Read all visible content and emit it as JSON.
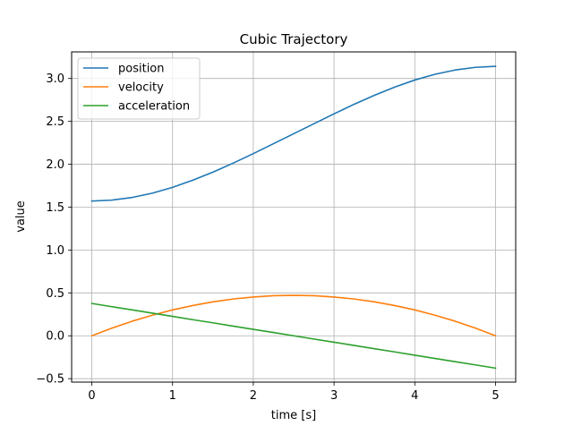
{
  "chart_data": {
    "type": "line",
    "title": "Cubic Trajectory",
    "xlabel": "time [s]",
    "ylabel": "value",
    "xlim": [
      -0.25,
      5.25
    ],
    "ylim": [
      -0.54,
      3.31
    ],
    "xticks": [
      0,
      1,
      2,
      3,
      4,
      5
    ],
    "xtick_labels": [
      "0",
      "1",
      "2",
      "3",
      "4",
      "5"
    ],
    "yticks": [
      -0.5,
      0.0,
      0.5,
      1.0,
      1.5,
      2.0,
      2.5,
      3.0
    ],
    "ytick_labels": [
      "−0.5",
      "0.0",
      "0.5",
      "1.0",
      "1.5",
      "2.0",
      "2.5",
      "3.0"
    ],
    "grid": true,
    "legend_position": "top-left",
    "x": [
      0,
      0.25,
      0.5,
      0.75,
      1.0,
      1.25,
      1.5,
      1.75,
      2.0,
      2.25,
      2.5,
      2.75,
      3.0,
      3.25,
      3.5,
      3.75,
      4.0,
      4.25,
      4.5,
      4.75,
      5.0
    ],
    "series": [
      {
        "name": "position",
        "color": "#1f77b4",
        "values": [
          1.571,
          1.582,
          1.613,
          1.663,
          1.731,
          1.814,
          1.908,
          2.013,
          2.124,
          2.24,
          2.356,
          2.472,
          2.588,
          2.7,
          2.804,
          2.899,
          2.982,
          3.049,
          3.099,
          3.13,
          3.142
        ]
      },
      {
        "name": "velocity",
        "color": "#ff7f0e",
        "values": [
          0.0,
          0.09,
          0.17,
          0.24,
          0.302,
          0.353,
          0.396,
          0.429,
          0.452,
          0.467,
          0.471,
          0.467,
          0.452,
          0.429,
          0.396,
          0.353,
          0.302,
          0.24,
          0.17,
          0.09,
          0.0
        ]
      },
      {
        "name": "acceleration",
        "color": "#2ca02c",
        "values": [
          0.377,
          0.339,
          0.302,
          0.264,
          0.226,
          0.188,
          0.151,
          0.113,
          0.075,
          0.038,
          0.0,
          -0.038,
          -0.075,
          -0.113,
          -0.151,
          -0.188,
          -0.226,
          -0.264,
          -0.302,
          -0.339,
          -0.377
        ]
      }
    ]
  }
}
